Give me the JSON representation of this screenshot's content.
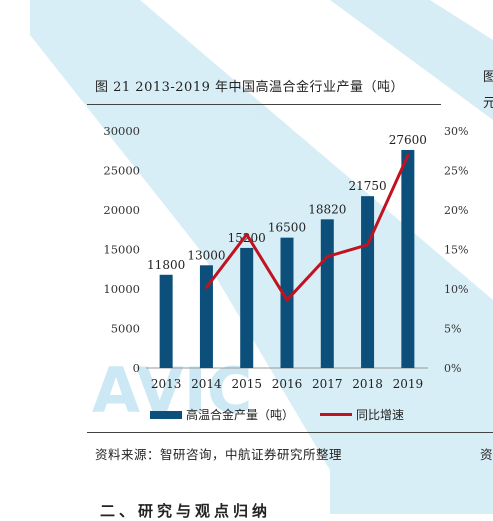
{
  "figure": {
    "title": "图 21 2013-2019 年中国高温合金行业产量（吨）",
    "source": "资料来源：智研咨询，中航证券研究所整理",
    "side_cut_1": "图",
    "side_cut_2": "元",
    "side_cut_3": "资",
    "watermark": "AVIC",
    "heading_cut": "二、研究与观点归纳"
  },
  "colors": {
    "bar": "#0b4f7a",
    "line": "#c1121f",
    "watermark": "#8ecde8"
  },
  "chart_data": {
    "type": "bar",
    "categories": [
      "2013",
      "2014",
      "2015",
      "2016",
      "2017",
      "2018",
      "2019"
    ],
    "series": [
      {
        "name": "高温合金产量（吨）",
        "type": "bar",
        "axis": "left",
        "values": [
          11800,
          13000,
          15200,
          16500,
          18820,
          21750,
          27600
        ]
      },
      {
        "name": "同比增速",
        "type": "line",
        "axis": "right",
        "values": [
          null,
          10.2,
          16.9,
          8.6,
          14.1,
          15.6,
          26.9
        ]
      }
    ],
    "y_left": {
      "min": 0,
      "max": 30000,
      "ticks": [
        "0",
        "5000",
        "10000",
        "15000",
        "20000",
        "25000",
        "30000"
      ]
    },
    "y_right": {
      "min": 0,
      "max": 30,
      "ticks": [
        "0%",
        "5%",
        "10%",
        "15%",
        "20%",
        "25%",
        "30%"
      ]
    },
    "data_labels": [
      "11800",
      "13000",
      "15200",
      "16500",
      "18820",
      "21750",
      "27600"
    ],
    "legend": "bottom",
    "grid": false
  }
}
